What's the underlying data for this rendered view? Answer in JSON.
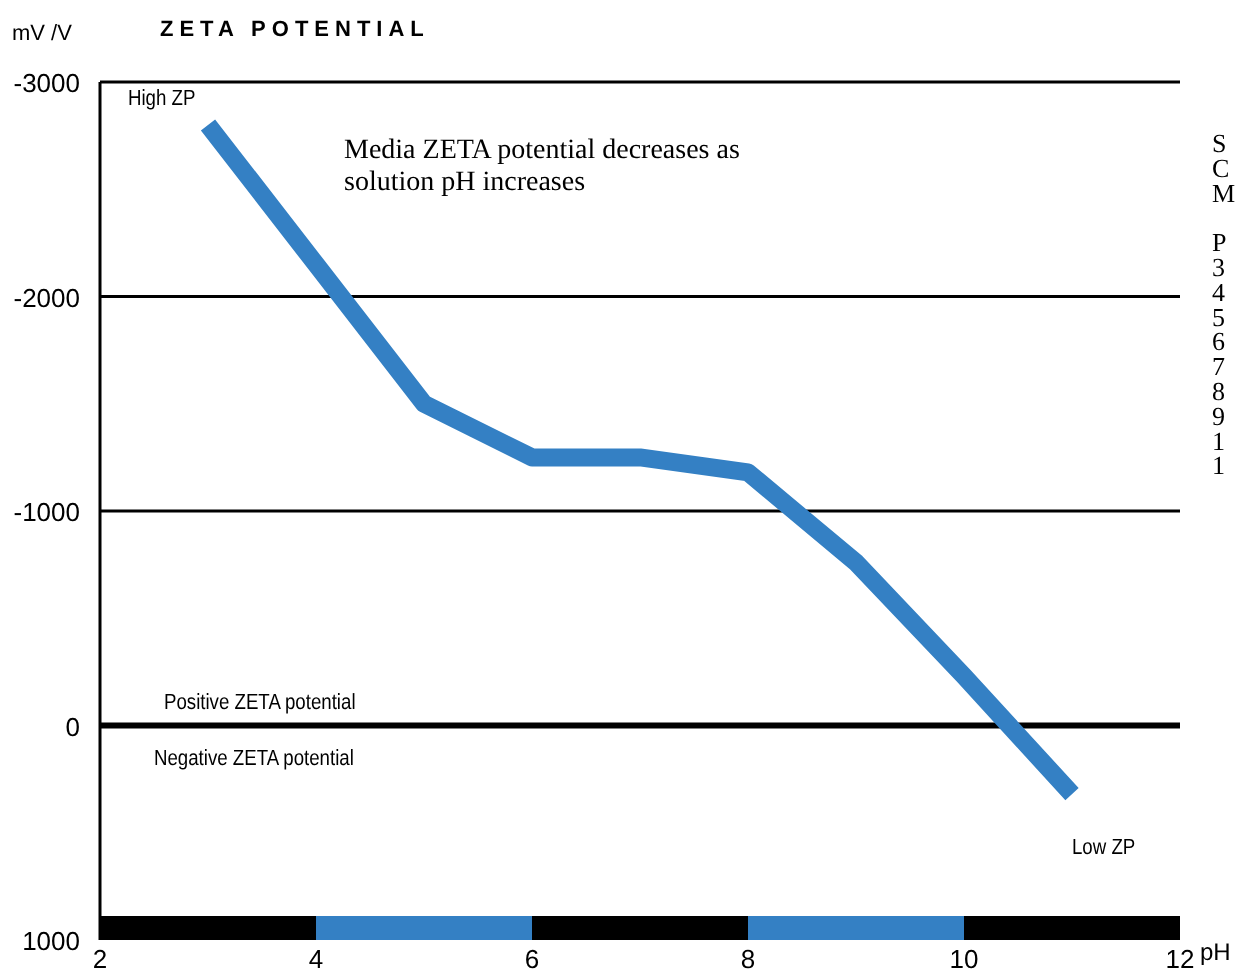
{
  "chart_data": {
    "type": "line",
    "title": "ZETA POTENTIAL",
    "ylabel": "mV /V",
    "xlabel": "pH",
    "x": [
      3,
      4,
      5,
      6,
      7,
      8,
      9,
      10,
      11
    ],
    "series": [
      {
        "color": "#3480c4",
        "values": [
          -2800,
          -2150,
          -1500,
          -1250,
          -1250,
          -1180,
          -760,
          -230,
          320
        ]
      }
    ],
    "xlim": [
      2,
      12
    ],
    "xticks": [
      2,
      4,
      6,
      8,
      10,
      12
    ],
    "ylim": [
      1000,
      -3000
    ],
    "yticks": [
      -3000,
      -2000,
      -1000,
      0,
      1000
    ],
    "grid": "y",
    "ref_lines": [
      {
        "axis": "y",
        "value": 0
      }
    ],
    "annotations": [
      "Media ZETA potential decreases as solution pH increases",
      "S\nC\nM\n\nP\n3\n4\n5\n6\n7\n8\n9\n1\n1",
      {
        "text": "High ZP",
        "x": 3,
        "y": -2800
      },
      {
        "text": "Low ZP",
        "x": 11,
        "y": 320
      },
      {
        "text": "Positive ZETA potential",
        "x": 2.5,
        "y": 0
      },
      {
        "text": "Negative ZETA potential",
        "x": 2.5,
        "y": 0
      }
    ]
  }
}
